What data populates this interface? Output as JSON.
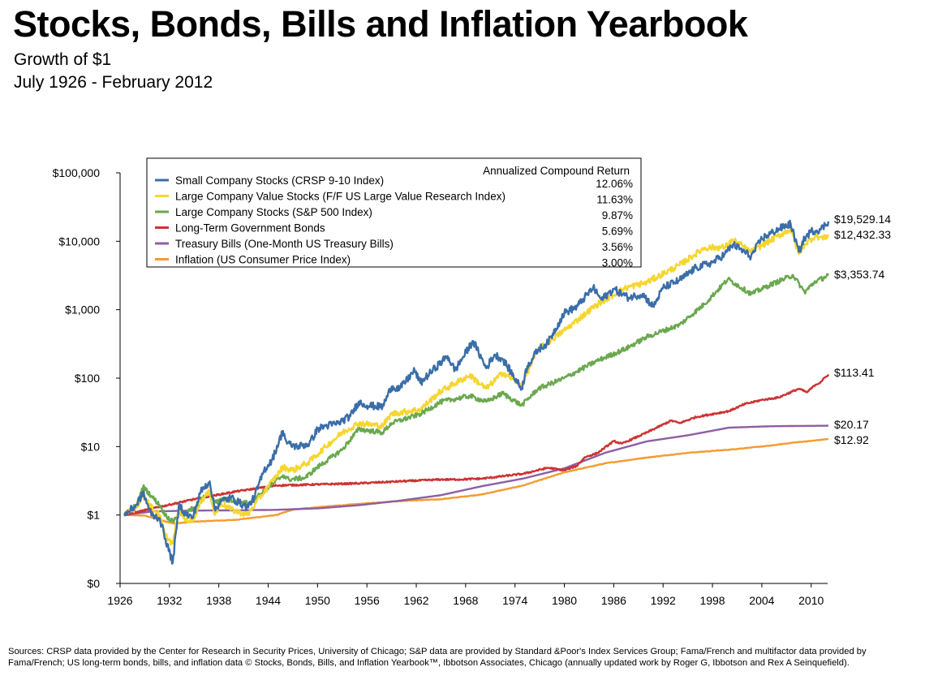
{
  "header": {
    "title": "Stocks, Bonds, Bills and Inflation Yearbook",
    "subtitle": "Growth of $1",
    "period": "July 1926 - February 2012"
  },
  "footer": {
    "sources": "Sources: CRSP data provided by the Center for Research in Security Prices, University of Chicago; S&P data are provided by Standard &Poor's Index Services Group; Fama/French and multifactor data provided by Fama/French; US long-term bonds, bills, and inflation data © Stocks, Bonds, Bills, and Inflation Yearbook™, Ibbotson Associates, Chicago (annually updated work by Roger G, Ibbotson and Rex A Seinquefield)."
  },
  "chart_data": {
    "type": "line",
    "title": "Growth of $1",
    "xlabel": "",
    "ylabel": "",
    "y_scale": "log",
    "ylim": [
      0.1,
      100000
    ],
    "xlim": [
      1926,
      2012
    ],
    "grid": false,
    "legend_placement": "top-left",
    "legend_header": "Annualized Compound Return",
    "x_ticks": [
      "1926",
      "1932",
      "1938",
      "1944",
      "1950",
      "1956",
      "1962",
      "1968",
      "1974",
      "1980",
      "1986",
      "1992",
      "1998",
      "2004",
      "2010"
    ],
    "y_ticks": [
      {
        "value": 0.1,
        "label": "$0"
      },
      {
        "value": 1,
        "label": "$1"
      },
      {
        "value": 10,
        "label": "$10"
      },
      {
        "value": 100,
        "label": "$100"
      },
      {
        "value": 1000,
        "label": "$1,000"
      },
      {
        "value": 10000,
        "label": "$10,000"
      },
      {
        "value": 100000,
        "label": "$100,000"
      }
    ],
    "series": [
      {
        "name": "Small Company Stocks (CRSP 9-10 Index)",
        "return": "12.06%",
        "end_label": "$19,529.14",
        "color": "#3a6ea8",
        "x": [
          1926.5,
          1928,
          1928.8,
          1929.8,
          1930.8,
          1931.5,
          1932.4,
          1933.2,
          1933.7,
          1934.8,
          1935.8,
          1936.9,
          1937.5,
          1938.3,
          1939.5,
          1940.5,
          1941.5,
          1942.3,
          1943.5,
          1944.5,
          1945.8,
          1946.3,
          1947.5,
          1949,
          1950,
          1951,
          1952.5,
          1954,
          1955,
          1956,
          1957.9,
          1959,
          1960,
          1961.8,
          1962.5,
          1964,
          1965.8,
          1966.7,
          1968.9,
          1970.5,
          1971.5,
          1972.5,
          1974.8,
          1975.5,
          1976.8,
          1978,
          1980,
          1981.5,
          1983.5,
          1984.5,
          1986,
          1987.8,
          1989.5,
          1990.8,
          1992,
          1994,
          1996,
          1998,
          1999.5,
          2000.5,
          2002.7,
          2004,
          2006,
          2007.5,
          2008.5,
          2009.2,
          2010,
          2011.2,
          2012.1
        ],
        "y": [
          1.0,
          1.4,
          2.1,
          1.0,
          0.9,
          0.45,
          0.2,
          1.5,
          1.1,
          0.9,
          2.2,
          3.1,
          1.2,
          1.6,
          1.8,
          1.5,
          1.3,
          1.8,
          4.5,
          6.5,
          17,
          11,
          10,
          11,
          18,
          20,
          22,
          28,
          45,
          40,
          38,
          75,
          70,
          130,
          85,
          130,
          210,
          130,
          350,
          140,
          220,
          190,
          70,
          150,
          260,
          330,
          900,
          1100,
          2100,
          1400,
          2000,
          1500,
          1700,
          1100,
          2100,
          2700,
          4100,
          4900,
          6500,
          9000,
          6000,
          11000,
          15000,
          18000,
          7000,
          11000,
          14000,
          15000,
          19529.14
        ]
      },
      {
        "name": "Large Company Value Stocks (F/F US Large Value Research Index)",
        "return": "11.63%",
        "end_label": "$12,432.33",
        "color": "#f5d630",
        "x": [
          1926.5,
          1928,
          1928.8,
          1929.8,
          1930.8,
          1931.5,
          1932.4,
          1933.2,
          1933.7,
          1934.8,
          1935.8,
          1936.9,
          1937.5,
          1938.3,
          1939.5,
          1941.5,
          1942.5,
          1944,
          1945.8,
          1947,
          1949,
          1951,
          1953,
          1955,
          1957.9,
          1959,
          1962.5,
          1965,
          1968.5,
          1970.5,
          1972.5,
          1974.8,
          1976.8,
          1980,
          1984,
          1987.5,
          1990,
          1994,
          1997,
          1999.5,
          2000.5,
          2002.7,
          2006,
          2007.5,
          2008.5,
          2009.2,
          2010.5,
          2011.5,
          2012.1
        ],
        "y": [
          1.0,
          1.3,
          2.0,
          1.3,
          1.0,
          0.5,
          0.38,
          1.3,
          0.9,
          0.8,
          1.6,
          2.2,
          1.0,
          1.5,
          1.2,
          1.0,
          1.5,
          2.6,
          5,
          4.5,
          6,
          10,
          16,
          22,
          20,
          30,
          35,
          65,
          110,
          70,
          120,
          80,
          260,
          500,
          1200,
          2100,
          2500,
          4500,
          8000,
          8200,
          10500,
          7000,
          12000,
          15000,
          6500,
          9000,
          12000,
          11000,
          12432.33
        ]
      },
      {
        "name": "Large Company Stocks (S&P 500 Index)",
        "return": "9.87%",
        "end_label": "$3,353.74",
        "color": "#6aa84f",
        "x": [
          1926.5,
          1928,
          1928.8,
          1929.8,
          1930.8,
          1931.5,
          1932.4,
          1933.2,
          1933.7,
          1935,
          1936.9,
          1937.5,
          1938.5,
          1940,
          1941.5,
          1943,
          1945.8,
          1946.5,
          1948.5,
          1950,
          1953,
          1955,
          1957.9,
          1959,
          1962.5,
          1965,
          1968.5,
          1970.5,
          1972.5,
          1974.8,
          1976.8,
          1980,
          1984,
          1987.5,
          1990,
          1994,
          1997,
          1999.9,
          2002.7,
          2005,
          2007.8,
          2009.2,
          2010.5,
          2011.5,
          2012.1
        ],
        "y": [
          1.0,
          1.4,
          2.6,
          1.9,
          1.4,
          1.0,
          0.8,
          1.1,
          1.0,
          1.3,
          2.2,
          1.5,
          1.7,
          1.6,
          1.5,
          2.0,
          3.8,
          3.3,
          3.5,
          5,
          9,
          18,
          16,
          22,
          30,
          45,
          55,
          45,
          60,
          40,
          70,
          100,
          180,
          270,
          400,
          600,
          1200,
          2800,
          1700,
          2300,
          3200,
          1800,
          2600,
          2900,
          3353.74
        ]
      },
      {
        "name": "Long-Term Government Bonds",
        "return": "5.69%",
        "end_label": "$113.41",
        "color": "#cc3333",
        "x": [
          1926.5,
          1930,
          1935,
          1940,
          1945,
          1950,
          1955,
          1960,
          1965,
          1967,
          1970,
          1975,
          1978,
          1980,
          1981.5,
          1982.5,
          1984,
          1986,
          1987,
          1990,
          1993,
          1994,
          1996,
          2000,
          2002,
          2004,
          2006,
          2008.5,
          2009.5,
          2010.5,
          2011,
          2012.1
        ],
        "y": [
          1.0,
          1.25,
          1.7,
          2.2,
          2.7,
          2.8,
          2.9,
          3.1,
          3.3,
          3.3,
          3.4,
          4.0,
          4.9,
          4.5,
          5.2,
          7,
          8,
          12,
          11,
          16,
          24,
          22,
          27,
          33,
          42,
          48,
          52,
          70,
          62,
          80,
          85,
          113.41
        ]
      },
      {
        "name": "Treasury Bills (One-Month US Treasury Bills)",
        "return": "3.56%",
        "end_label": "$20.17",
        "color": "#8e5ea2",
        "x": [
          1926.5,
          1930,
          1935,
          1940,
          1945,
          1950,
          1955,
          1960,
          1965,
          1970,
          1975,
          1980,
          1985,
          1990,
          1995,
          2000,
          2005,
          2008,
          2012.1
        ],
        "y": [
          1.0,
          1.13,
          1.16,
          1.17,
          1.19,
          1.25,
          1.39,
          1.62,
          1.95,
          2.64,
          3.41,
          4.81,
          8.14,
          11.9,
          14.6,
          18.9,
          19.8,
          20.0,
          20.17
        ]
      },
      {
        "name": "Inflation (US Consumer Price Index)",
        "return": "3.00%",
        "end_label": "$12.92",
        "color": "#f39c32",
        "x": [
          1926.5,
          1929,
          1932.5,
          1935,
          1940,
          1945,
          1947,
          1950,
          1955,
          1960,
          1965,
          1970,
          1975,
          1980,
          1985,
          1990,
          1995,
          2000,
          2005,
          2008,
          2010,
          2012.1
        ],
        "y": [
          1.0,
          0.98,
          0.75,
          0.8,
          0.85,
          1.0,
          1.2,
          1.3,
          1.45,
          1.6,
          1.7,
          2.0,
          2.7,
          4.2,
          5.7,
          6.9,
          8.1,
          9.0,
          10.3,
          11.5,
          12.1,
          12.92
        ]
      }
    ]
  }
}
